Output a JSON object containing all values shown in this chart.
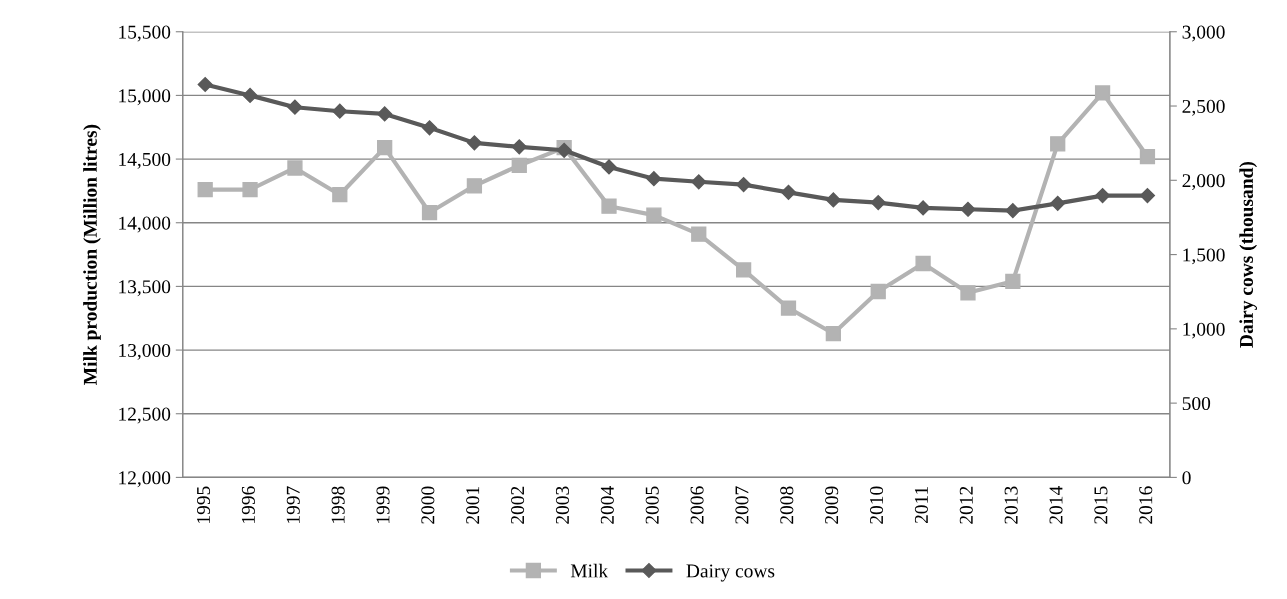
{
  "chart_data": {
    "type": "line",
    "ylabel": "Milk production (Million litres)",
    "y2label": "Dairy cows (thousand)",
    "categories": [
      "1995",
      "1996",
      "1997",
      "1998",
      "1999",
      "2000",
      "2001",
      "2002",
      "2003",
      "2004",
      "2005",
      "2006",
      "2007",
      "2008",
      "2009",
      "2010",
      "2011",
      "2012",
      "2013",
      "2014",
      "2015",
      "2016"
    ],
    "series": [
      {
        "name": "Milk",
        "color": "#b3b3b3",
        "marker": "square",
        "values": [
          14260,
          14260,
          14430,
          14220,
          14590,
          14080,
          14290,
          14450,
          14590,
          14130,
          14060,
          13910,
          13630,
          13330,
          13130,
          13460,
          13680,
          13450,
          13540,
          14620,
          15020,
          14520
        ]
      },
      {
        "name": "Dairy cows",
        "color": "#595959",
        "marker": "diamond",
        "axis": "y2",
        "values": [
          2645,
          2571,
          2492,
          2465,
          2447,
          2353,
          2252,
          2225,
          2202,
          2090,
          2011,
          1990,
          1971,
          1919,
          1868,
          1850,
          1814,
          1805,
          1796,
          1845,
          1897,
          1897
        ]
      }
    ],
    "ylim": [
      12000,
      15500
    ],
    "yticks": [
      {
        "value": 12000,
        "label": "12,000"
      },
      {
        "value": 12500,
        "label": "12,500"
      },
      {
        "value": 13000,
        "label": "13,000"
      },
      {
        "value": 13500,
        "label": "13,500"
      },
      {
        "value": 14000,
        "label": "14,000"
      },
      {
        "value": 14500,
        "label": "14,500"
      },
      {
        "value": 15000,
        "label": "15,000"
      },
      {
        "value": 15500,
        "label": "15,500"
      }
    ],
    "y2lim": [
      0,
      3000
    ],
    "y2ticks": [
      0,
      500,
      {
        "value": 1000,
        "label": "1,000"
      },
      {
        "value": 1500,
        "label": "1,500"
      },
      {
        "value": 2000,
        "label": "2,000"
      },
      {
        "value": 2500,
        "label": "2,500"
      },
      {
        "value": 3000,
        "label": "3,000"
      }
    ],
    "grid": "y",
    "legend": "bottom",
    "line_style": "solid"
  }
}
